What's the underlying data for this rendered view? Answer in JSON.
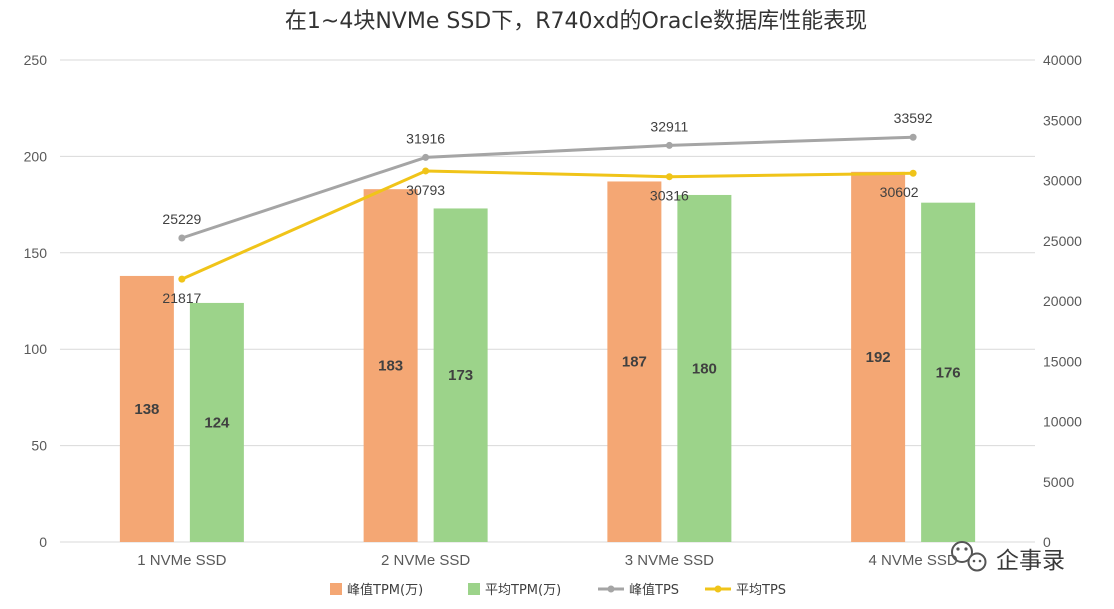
{
  "chart_data": {
    "type": "bar",
    "title": "在1~4块NVMe SSD下，R740xd的Oracle数据库性能表现",
    "categories": [
      "1 NVMe SSD",
      "2 NVMe SSD",
      "3 NVMe SSD",
      "4 NVMe SSD"
    ],
    "y_left": {
      "min": 0,
      "max": 250,
      "ticks": [
        "0",
        "50",
        "100",
        "150",
        "200",
        "250"
      ]
    },
    "y_right": {
      "min": 0,
      "max": 40000,
      "ticks": [
        "0",
        "5000",
        "10000",
        "15000",
        "20000",
        "25000",
        "30000",
        "35000",
        "40000"
      ]
    },
    "grid": true,
    "legend_position": "bottom",
    "bar_series": [
      {
        "name": "峰值TPM(万)",
        "color": "#F4A774",
        "values": [
          138,
          183,
          187,
          192
        ],
        "labels": [
          "138",
          "183",
          "187",
          "192"
        ]
      },
      {
        "name": "平均TPM(万)",
        "color": "#9CD38A",
        "values": [
          124,
          173,
          180,
          176
        ],
        "labels": [
          "124",
          "173",
          "180",
          "176"
        ]
      }
    ],
    "line_series": [
      {
        "name": "峰值TPS",
        "color": "#A5A5A5",
        "axis": "right",
        "values": [
          25229,
          31916,
          32911,
          33592
        ],
        "labels": [
          "25229",
          "31916",
          "32911",
          "33592"
        ]
      },
      {
        "name": "平均TPS",
        "color": "#F0C419",
        "axis": "right",
        "values": [
          21817,
          30793,
          30316,
          30602
        ],
        "labels": [
          "21817",
          "30793",
          "30316",
          "30602"
        ]
      }
    ]
  },
  "watermark": {
    "text": "企事录",
    "icon": "wechat-icon"
  }
}
